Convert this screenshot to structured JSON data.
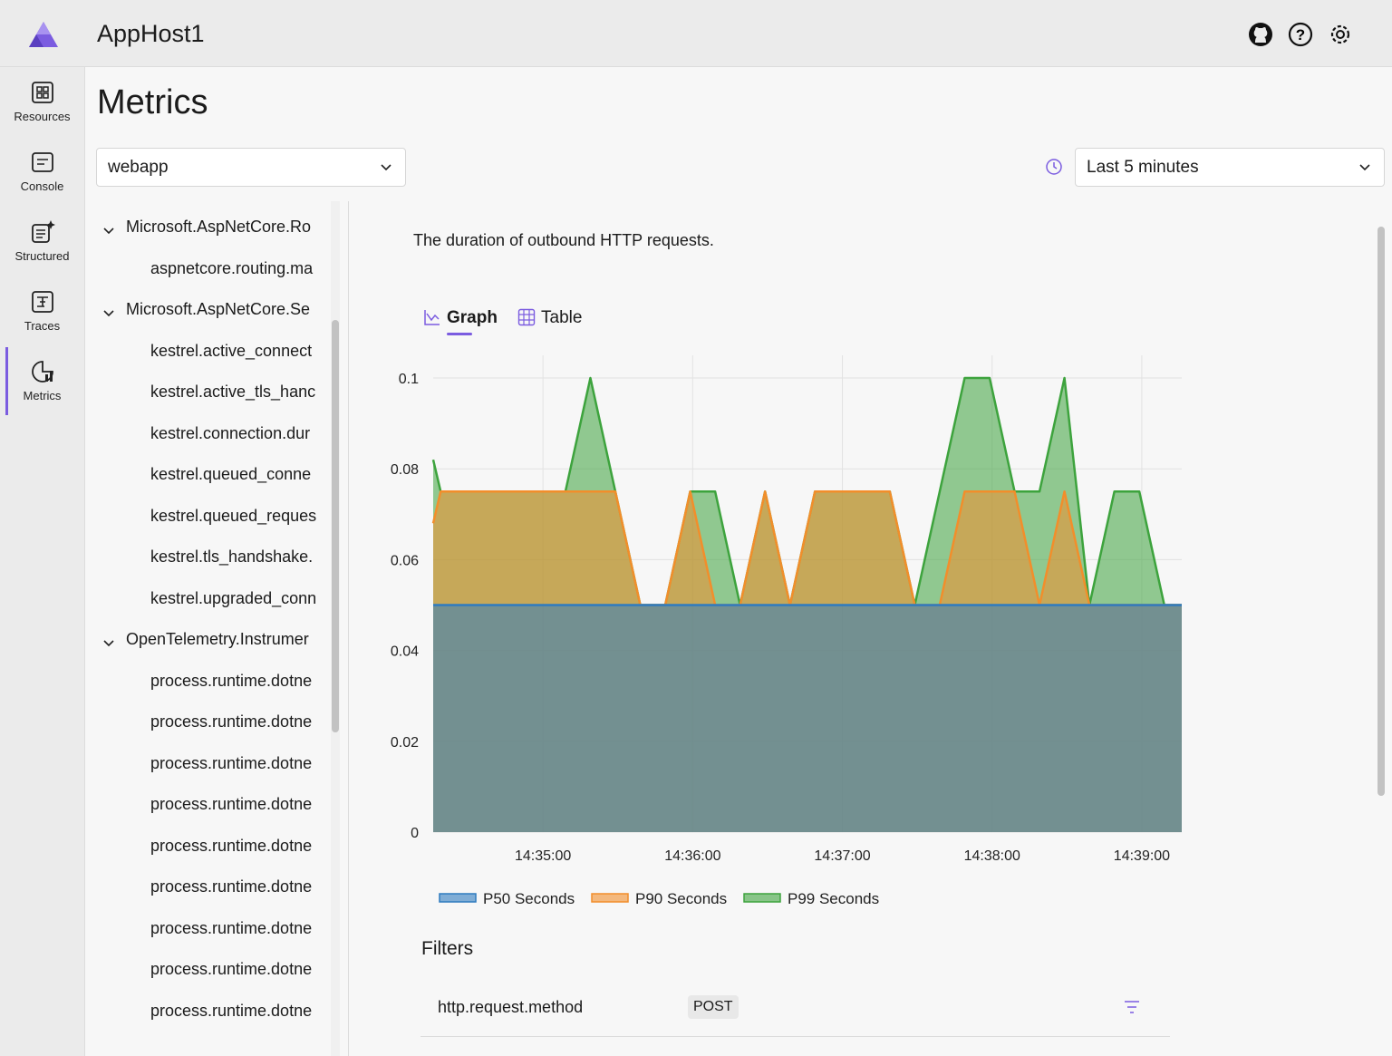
{
  "header": {
    "title": "AppHost1"
  },
  "nav": [
    {
      "label": "Resources"
    },
    {
      "label": "Console"
    },
    {
      "label": "Structured"
    },
    {
      "label": "Traces"
    },
    {
      "label": "Metrics"
    }
  ],
  "page": {
    "title": "Metrics",
    "resource_select": "webapp",
    "time_select": "Last 5 minutes"
  },
  "tree": {
    "groups": [
      {
        "label": "Microsoft.AspNetCore.Ro",
        "children": [
          "aspnetcore.routing.ma"
        ]
      },
      {
        "label": "Microsoft.AspNetCore.Se",
        "children": [
          "kestrel.active_connect",
          "kestrel.active_tls_hanc",
          "kestrel.connection.dur",
          "kestrel.queued_conne",
          "kestrel.queued_reques",
          "kestrel.tls_handshake.",
          "kestrel.upgraded_conn"
        ]
      },
      {
        "label": "OpenTelemetry.Instrumer",
        "children": [
          "process.runtime.dotne",
          "process.runtime.dotne",
          "process.runtime.dotne",
          "process.runtime.dotne",
          "process.runtime.dotne",
          "process.runtime.dotne",
          "process.runtime.dotne",
          "process.runtime.dotne",
          "process.runtime.dotne"
        ]
      }
    ]
  },
  "metric": {
    "description": "The duration of outbound HTTP requests.",
    "tabs": [
      "Graph",
      "Table"
    ]
  },
  "chart_data": {
    "type": "area",
    "x": [
      "14:34:16",
      "14:34:19",
      "14:34:29",
      "14:34:39",
      "14:34:49",
      "14:34:59",
      "14:35:09",
      "14:35:19",
      "14:35:29",
      "14:35:39",
      "14:35:49",
      "14:35:59",
      "14:36:09",
      "14:36:19",
      "14:36:29",
      "14:36:39",
      "14:36:49",
      "14:36:59",
      "14:37:09",
      "14:37:19",
      "14:37:29",
      "14:37:39",
      "14:37:49",
      "14:37:59",
      "14:38:09",
      "14:38:19",
      "14:38:29",
      "14:38:39",
      "14:38:49",
      "14:38:59",
      "14:39:09",
      "14:39:16"
    ],
    "series": [
      {
        "name": "P50 Seconds",
        "color": "#2f7bbf",
        "values": [
          0.05,
          0.05,
          0.05,
          0.05,
          0.05,
          0.05,
          0.05,
          0.05,
          0.05,
          0.05,
          0.05,
          0.05,
          0.05,
          0.05,
          0.05,
          0.05,
          0.05,
          0.05,
          0.05,
          0.05,
          0.05,
          0.05,
          0.05,
          0.05,
          0.05,
          0.05,
          0.05,
          0.05,
          0.05,
          0.05,
          0.05,
          0.05
        ]
      },
      {
        "name": "P90 Seconds",
        "color": "#f28e2b",
        "values": [
          0.068,
          0.075,
          0.075,
          0.075,
          0.075,
          0.075,
          0.075,
          0.075,
          0.075,
          0.05,
          0.05,
          0.075,
          0.05,
          0.05,
          0.075,
          0.05,
          0.075,
          0.075,
          0.075,
          0.075,
          0.05,
          0.05,
          0.075,
          0.075,
          0.075,
          0.05,
          0.075,
          0.05,
          0.05,
          0.05,
          0.05,
          0.05
        ]
      },
      {
        "name": "P99 Seconds",
        "color": "#3da33d",
        "values": [
          0.082,
          0.075,
          0.075,
          0.075,
          0.075,
          0.075,
          0.075,
          0.1,
          0.075,
          0.05,
          0.05,
          0.075,
          0.075,
          0.05,
          0.075,
          0.05,
          0.075,
          0.075,
          0.075,
          0.075,
          0.05,
          0.075,
          0.1,
          0.1,
          0.075,
          0.075,
          0.1,
          0.05,
          0.075,
          0.075,
          0.05,
          0.05
        ]
      }
    ],
    "xlim": [
      "14:34:16",
      "14:39:16"
    ],
    "xticks": [
      "14:35:00",
      "14:36:00",
      "14:37:00",
      "14:38:00",
      "14:39:00"
    ],
    "ylim": [
      0,
      0.1
    ],
    "yticks": [
      0,
      0.02,
      0.04,
      0.06,
      0.08,
      0.1
    ],
    "grid": true
  },
  "filters": {
    "title": "Filters",
    "rows": [
      {
        "name": "http.request.method",
        "value": "POST"
      }
    ]
  }
}
